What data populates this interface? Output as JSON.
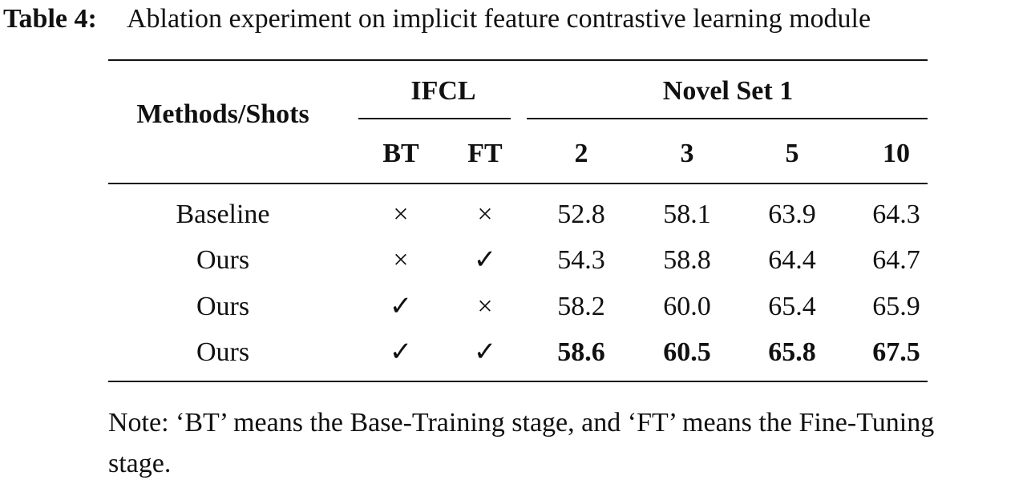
{
  "caption": {
    "label": "Table 4:",
    "text": "Ablation experiment on implicit feature contrastive learning module"
  },
  "table": {
    "header": {
      "methods": "Methods/Shots",
      "group1": "IFCL",
      "group2": "Novel Set 1",
      "columns": [
        "BT",
        "FT",
        "2",
        "3",
        "5",
        "10"
      ]
    },
    "rows": [
      [
        "Baseline",
        "×",
        "×",
        "52.8",
        "58.1",
        "63.9",
        "64.3"
      ],
      [
        "Ours",
        "×",
        "✓",
        "54.3",
        "58.8",
        "64.4",
        "64.7"
      ],
      [
        "Ours",
        "✓",
        "×",
        "58.2",
        "60.0",
        "65.4",
        "65.9"
      ],
      [
        "Ours",
        "✓",
        "✓",
        "58.6",
        "60.5",
        "65.8",
        "67.5"
      ]
    ]
  },
  "note": "Note: ‘BT’ means the Base-Training stage, and ‘FT’ means the Fine-Tuning stage."
}
